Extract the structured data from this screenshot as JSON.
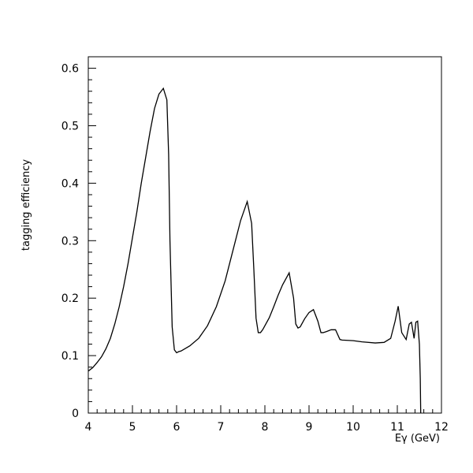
{
  "chart_data": {
    "type": "line",
    "title": "",
    "xlabel": "Eγ (GeV)",
    "ylabel": "tagging efficiency",
    "xlim": [
      4,
      12
    ],
    "ylim": [
      0,
      0.62
    ],
    "xticks": [
      4,
      5,
      6,
      7,
      8,
      9,
      10,
      11,
      12
    ],
    "yticks": [
      0,
      0.1,
      0.2,
      0.3,
      0.4,
      0.5,
      0.6
    ],
    "ytick_labels": [
      "0",
      "0.1",
      "0.2",
      "0.3",
      "0.4",
      "0.5",
      "0.6"
    ],
    "grid": false,
    "legend": "none",
    "series": [
      {
        "x": [
          4.0,
          4.1,
          4.2,
          4.3,
          4.4,
          4.5,
          4.6,
          4.7,
          4.8,
          4.9,
          5.0,
          5.1,
          5.2,
          5.3,
          5.4,
          5.5,
          5.6,
          5.7,
          5.78,
          5.82,
          5.85,
          5.9,
          5.95,
          6.0,
          6.05,
          6.1,
          6.3,
          6.5,
          6.7,
          6.9,
          7.1,
          7.3,
          7.45,
          7.6,
          7.7,
          7.75,
          7.8,
          7.85,
          7.9,
          7.95,
          8.0,
          8.1,
          8.2,
          8.3,
          8.4,
          8.55,
          8.65,
          8.7,
          8.75,
          8.8,
          8.85,
          8.9,
          9.0,
          9.1,
          9.2,
          9.27,
          9.32,
          9.4,
          9.5,
          9.6,
          9.7,
          9.75,
          10.0,
          10.2,
          10.5,
          10.7,
          10.85,
          10.95,
          11.02,
          11.1,
          11.2,
          11.27,
          11.32,
          11.38,
          11.42,
          11.46,
          11.5,
          11.52,
          11.53
        ],
        "y": [
          0.073,
          0.079,
          0.088,
          0.098,
          0.112,
          0.13,
          0.155,
          0.185,
          0.22,
          0.26,
          0.305,
          0.35,
          0.4,
          0.445,
          0.49,
          0.53,
          0.555,
          0.565,
          0.545,
          0.45,
          0.3,
          0.15,
          0.11,
          0.105,
          0.107,
          0.108,
          0.117,
          0.13,
          0.152,
          0.185,
          0.23,
          0.29,
          0.335,
          0.368,
          0.33,
          0.25,
          0.165,
          0.14,
          0.14,
          0.145,
          0.152,
          0.166,
          0.185,
          0.205,
          0.223,
          0.244,
          0.2,
          0.155,
          0.148,
          0.15,
          0.157,
          0.164,
          0.175,
          0.18,
          0.16,
          0.14,
          0.14,
          0.142,
          0.145,
          0.145,
          0.128,
          0.127,
          0.126,
          0.124,
          0.122,
          0.123,
          0.13,
          0.16,
          0.186,
          0.14,
          0.128,
          0.155,
          0.158,
          0.13,
          0.158,
          0.16,
          0.12,
          0.06,
          0.0
        ]
      }
    ]
  }
}
